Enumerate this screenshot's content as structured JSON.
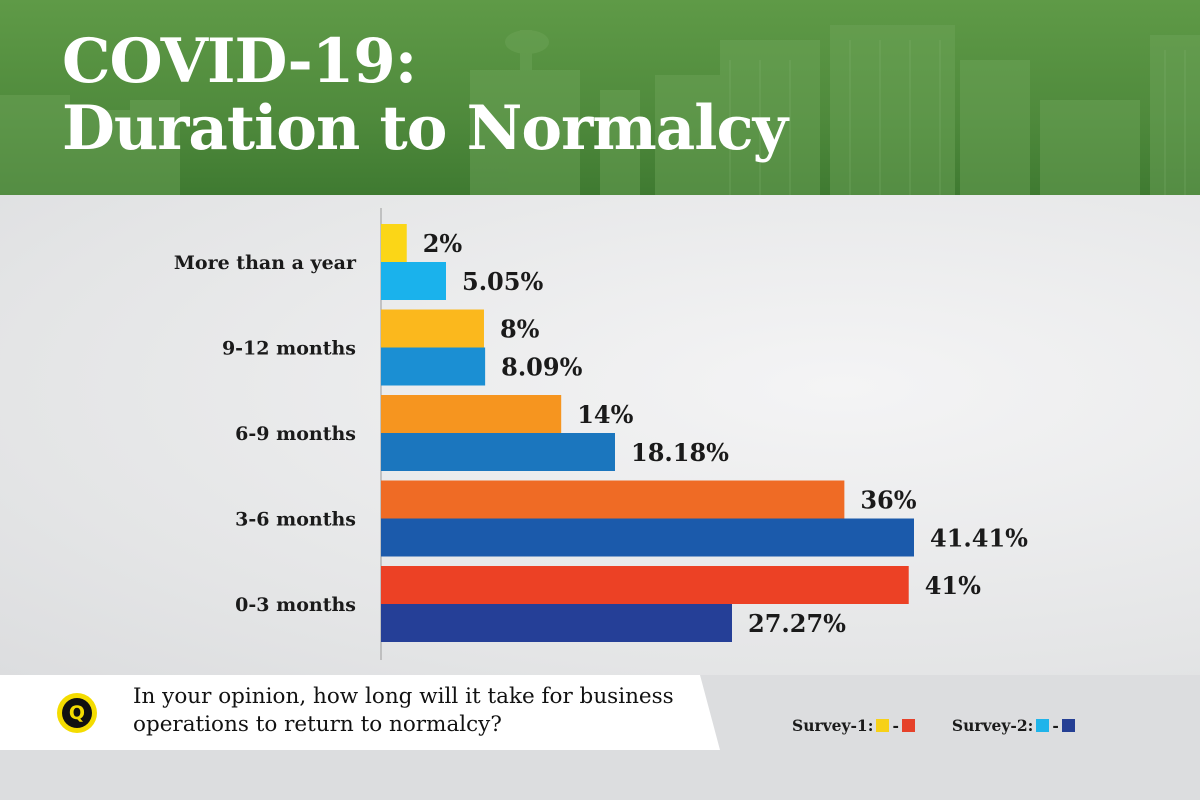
{
  "header": {
    "title_line1": "COVID-19:",
    "title_line2": "Duration to Normalcy",
    "background_color": "#4f8a3c"
  },
  "question": {
    "icon_letter": "Q",
    "text": "In your opinion, how long will it take for business operations to return to normalcy?"
  },
  "legend": {
    "survey1_label": "Survey-1:",
    "survey2_label": "Survey-2:",
    "dash": "-",
    "survey1_colors": [
      "#f7d117",
      "#e6412a"
    ],
    "survey2_colors": [
      "#1fb4ea",
      "#253f94"
    ]
  },
  "chart_data": {
    "type": "bar",
    "orientation": "horizontal",
    "categories": [
      "More than a year",
      "9-12 months",
      "6-9 months",
      "3-6 months",
      "0-3 months"
    ],
    "series": [
      {
        "name": "Survey-1",
        "values": [
          2,
          8,
          14,
          36,
          41
        ],
        "labels": [
          "2%",
          "8%",
          "14%",
          "36%",
          "41%"
        ],
        "colors": [
          "#fbd617",
          "#fbb81d",
          "#f6951f",
          "#ef6b25",
          "#ec4125"
        ]
      },
      {
        "name": "Survey-2",
        "values": [
          5.05,
          8.09,
          18.18,
          41.41,
          27.27
        ],
        "labels": [
          "5.05%",
          "8.09%",
          "18.18%",
          "41.41%",
          "27.27%"
        ],
        "colors": [
          "#1ab2ec",
          "#1b8fd3",
          "#1b76be",
          "#1b5aab",
          "#253f97"
        ]
      }
    ],
    "xlim": [
      0,
      41.41
    ],
    "grid": false,
    "legend_position": "bottom-right"
  }
}
